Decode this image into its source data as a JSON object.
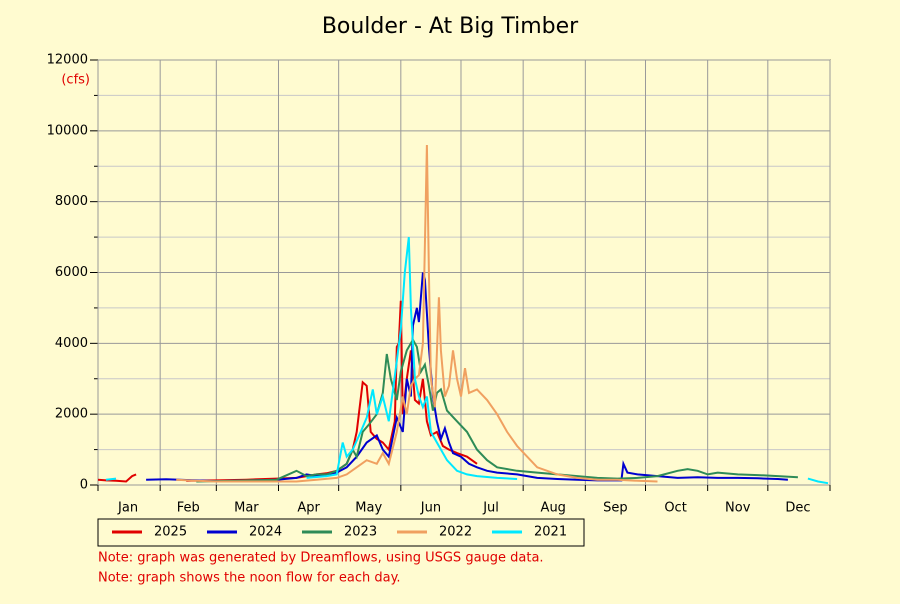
{
  "chart_data": {
    "type": "line",
    "title": "Boulder - At Big Timber",
    "y_unit": "(cfs)",
    "xlim": [
      1,
      366
    ],
    "ylim": [
      0,
      12000
    ],
    "yticks": [
      0,
      2000,
      4000,
      6000,
      8000,
      10000,
      12000
    ],
    "yminor": [
      1000,
      3000,
      5000,
      7000,
      9000,
      11000
    ],
    "xgrid": [
      1,
      32,
      60,
      91,
      121,
      152,
      182,
      213,
      244,
      274,
      305,
      335,
      366
    ],
    "xticks": [
      {
        "value": 16,
        "label": "Jan"
      },
      {
        "value": 46,
        "label": "Feb"
      },
      {
        "value": 75,
        "label": "Mar"
      },
      {
        "value": 106,
        "label": "Apr"
      },
      {
        "value": 136,
        "label": "May"
      },
      {
        "value": 167,
        "label": "Jun"
      },
      {
        "value": 197,
        "label": "Jul"
      },
      {
        "value": 228,
        "label": "Aug"
      },
      {
        "value": 259,
        "label": "Sep"
      },
      {
        "value": 289,
        "label": "Oct"
      },
      {
        "value": 320,
        "label": "Nov"
      },
      {
        "value": 350,
        "label": "Dec"
      }
    ],
    "grid": true,
    "series": [
      {
        "name": "2025",
        "color": "#e00000",
        "x": [
          1,
          5,
          10,
          15,
          18,
          20,
          30,
          45,
          60,
          75,
          90,
          100,
          105,
          110,
          115,
          120,
          125,
          128,
          130,
          133,
          135,
          137,
          140,
          143,
          146,
          149,
          150,
          151,
          152,
          153,
          155,
          157,
          159,
          161,
          163,
          165,
          167,
          170,
          173,
          176,
          180,
          185,
          190
        ],
        "values": [
          150,
          130,
          120,
          100,
          250,
          300,
          null,
          120,
          130,
          150,
          180,
          200,
          250,
          300,
          330,
          400,
          600,
          1000,
          1500,
          2900,
          2800,
          1500,
          1300,
          1200,
          1000,
          1800,
          3900,
          4000,
          5200,
          2000,
          3000,
          3800,
          2400,
          2300,
          3000,
          1800,
          1400,
          1500,
          1100,
          1000,
          900,
          800,
          600
        ]
      },
      {
        "name": "2024",
        "color": "#0000d0",
        "x": [
          25,
          35,
          45,
          50,
          55,
          60,
          70,
          80,
          90,
          100,
          105,
          110,
          115,
          120,
          125,
          130,
          135,
          140,
          143,
          146,
          150,
          153,
          155,
          157,
          158,
          160,
          161,
          163,
          164,
          166,
          168,
          170,
          172,
          174,
          176,
          178,
          182,
          186,
          190,
          195,
          200,
          210,
          220,
          230,
          240,
          250,
          262,
          263,
          265,
          270,
          280,
          290,
          300,
          310,
          320,
          330,
          340,
          345
        ],
        "values": [
          150,
          160,
          140,
          130,
          120,
          110,
          120,
          130,
          150,
          200,
          300,
          250,
          300,
          350,
          500,
          800,
          1200,
          1400,
          1000,
          800,
          1900,
          1500,
          3000,
          2500,
          4500,
          5000,
          4600,
          6000,
          5800,
          3900,
          2500,
          1800,
          1300,
          1600,
          1200,
          900,
          800,
          600,
          500,
          400,
          350,
          300,
          200,
          170,
          150,
          130,
          130,
          600,
          350,
          300,
          250,
          200,
          220,
          200,
          200,
          190,
          170,
          150
        ]
      },
      {
        "name": "2023",
        "color": "#2e8b57",
        "x": [
          50,
          70,
          90,
          100,
          105,
          110,
          115,
          120,
          125,
          128,
          130,
          133,
          136,
          140,
          143,
          145,
          147,
          150,
          152,
          155,
          158,
          160,
          162,
          164,
          166,
          168,
          170,
          172,
          175,
          180,
          185,
          190,
          195,
          200,
          210,
          220,
          230,
          240,
          250,
          260,
          270,
          280,
          290,
          295,
          300,
          305,
          310,
          320,
          330,
          340,
          350
        ],
        "values": [
          100,
          120,
          150,
          400,
          250,
          300,
          300,
          400,
          600,
          1000,
          800,
          1500,
          1700,
          2000,
          2600,
          3700,
          3000,
          2400,
          3200,
          3800,
          4100,
          3900,
          3200,
          3400,
          2800,
          2100,
          2600,
          2700,
          2100,
          1800,
          1500,
          1000,
          700,
          500,
          400,
          350,
          300,
          250,
          200,
          180,
          200,
          250,
          400,
          450,
          400,
          300,
          350,
          300,
          280,
          250,
          220
        ]
      },
      {
        "name": "2022",
        "color": "#f0a060",
        "x": [
          40,
          50,
          60,
          80,
          100,
          110,
          120,
          125,
          130,
          135,
          140,
          143,
          146,
          150,
          153,
          155,
          157,
          159,
          161,
          163,
          165,
          166,
          167,
          169,
          171,
          172,
          174,
          176,
          178,
          180,
          182,
          184,
          186,
          190,
          195,
          200,
          205,
          210,
          215,
          220,
          230,
          240,
          250,
          260,
          270,
          280
        ],
        "values": [
          150,
          120,
          100,
          100,
          100,
          150,
          200,
          300,
          500,
          700,
          600,
          900,
          600,
          1500,
          2500,
          2000,
          2800,
          3000,
          3100,
          4000,
          9600,
          6000,
          3000,
          2200,
          5300,
          3800,
          2500,
          2800,
          3800,
          3000,
          2500,
          3300,
          2600,
          2700,
          2400,
          2000,
          1500,
          1100,
          800,
          500,
          300,
          200,
          150,
          150,
          120,
          100
        ]
      },
      {
        "name": "2021",
        "color": "#00e8ff",
        "x": [
          5,
          10,
          50,
          105,
          115,
          120,
          123,
          125,
          128,
          132,
          135,
          138,
          140,
          143,
          146,
          150,
          152,
          154,
          156,
          157,
          159,
          161,
          163,
          165,
          167,
          170,
          175,
          180,
          185,
          190,
          200,
          210,
          300,
          355,
          360,
          365
        ],
        "values": [
          150,
          180,
          null,
          200,
          250,
          300,
          1200,
          800,
          1000,
          1500,
          1900,
          2700,
          2000,
          2500,
          1800,
          3500,
          4400,
          6000,
          7000,
          5000,
          3000,
          2500,
          2200,
          2500,
          1500,
          1200,
          700,
          400,
          300,
          250,
          200,
          170,
          null,
          180,
          100,
          50
        ]
      }
    ],
    "notes": [
      "Note: graph was generated by Dreamflows, using USGS gauge data.",
      "Note: graph shows the noon flow for each day."
    ]
  }
}
